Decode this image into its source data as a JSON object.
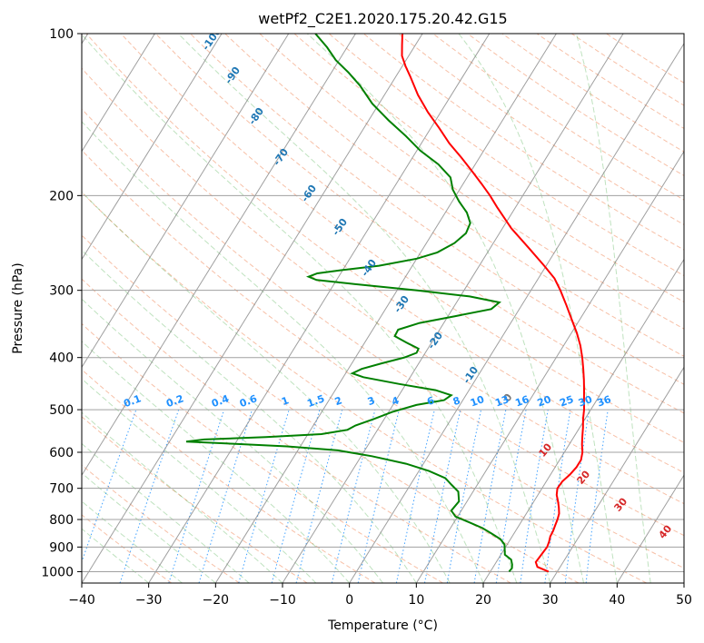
{
  "chart_data": {
    "type": "line",
    "title": "wetPf2_C2E1.2020.175.20.42.G15",
    "xlabel": "Temperature (°C)",
    "ylabel": "Pressure (hPa)",
    "xlim": [
      -40,
      50
    ],
    "ylim": [
      1050,
      100
    ],
    "y_scale": "log",
    "grid": true,
    "x_ticks": [
      -40,
      -30,
      -20,
      -10,
      0,
      10,
      20,
      30,
      40,
      50
    ],
    "y_ticks": [
      100,
      200,
      300,
      400,
      500,
      600,
      700,
      800,
      900,
      1000
    ],
    "series": [
      {
        "key": "temperature",
        "color": "#ff0000",
        "points": [
          [
            1000,
            28.7
          ],
          [
            980,
            26.6
          ],
          [
            960,
            25.9
          ],
          [
            940,
            26.0
          ],
          [
            920,
            26.1
          ],
          [
            900,
            26.2
          ],
          [
            880,
            26.0
          ],
          [
            860,
            25.7
          ],
          [
            840,
            25.6
          ],
          [
            820,
            25.4
          ],
          [
            800,
            25.2
          ],
          [
            780,
            24.9
          ],
          [
            760,
            24.3
          ],
          [
            740,
            23.6
          ],
          [
            720,
            22.8
          ],
          [
            700,
            22.3
          ],
          [
            680,
            22.4
          ],
          [
            660,
            22.9
          ],
          [
            640,
            23.2
          ],
          [
            620,
            23.2
          ],
          [
            600,
            22.7
          ],
          [
            580,
            21.9
          ],
          [
            560,
            21.2
          ],
          [
            540,
            20.5
          ],
          [
            520,
            19.7
          ],
          [
            500,
            19.0
          ],
          [
            480,
            18.1
          ],
          [
            460,
            17.2
          ],
          [
            440,
            16.2
          ],
          [
            420,
            15.1
          ],
          [
            400,
            13.9
          ],
          [
            380,
            12.5
          ],
          [
            360,
            10.8
          ],
          [
            340,
            8.8
          ],
          [
            320,
            6.7
          ],
          [
            300,
            4.4
          ],
          [
            285,
            2.4
          ],
          [
            270,
            -0.3
          ],
          [
            250,
            -4.3
          ],
          [
            230,
            -8.7
          ],
          [
            210,
            -12.8
          ],
          [
            200,
            -14.9
          ],
          [
            190,
            -17.3
          ],
          [
            180,
            -19.9
          ],
          [
            170,
            -22.7
          ],
          [
            160,
            -25.8
          ],
          [
            150,
            -28.7
          ],
          [
            140,
            -31.9
          ],
          [
            130,
            -35.0
          ],
          [
            120,
            -37.9
          ],
          [
            115,
            -39.5
          ],
          [
            110,
            -41.0
          ],
          [
            105,
            -42.0
          ],
          [
            100,
            -43.0
          ]
        ]
      },
      {
        "key": "dewpoint",
        "color": "#008000",
        "points": [
          [
            1000,
            22.8
          ],
          [
            985,
            22.9
          ],
          [
            970,
            22.6
          ],
          [
            950,
            22.0
          ],
          [
            930,
            20.6
          ],
          [
            910,
            20.1
          ],
          [
            890,
            19.6
          ],
          [
            870,
            18.5
          ],
          [
            850,
            16.7
          ],
          [
            830,
            14.8
          ],
          [
            810,
            12.3
          ],
          [
            790,
            9.7
          ],
          [
            770,
            8.5
          ],
          [
            740,
            8.8
          ],
          [
            710,
            7.8
          ],
          [
            690,
            6.2
          ],
          [
            670,
            4.6
          ],
          [
            650,
            1.5
          ],
          [
            630,
            -2.6
          ],
          [
            610,
            -8.4
          ],
          [
            595,
            -14.0
          ],
          [
            585,
            -22.0
          ],
          [
            578,
            -31.0
          ],
          [
            573,
            -37.5
          ],
          [
            568,
            -35.0
          ],
          [
            562,
            -26.0
          ],
          [
            555,
            -18.0
          ],
          [
            545,
            -14.5
          ],
          [
            535,
            -13.7
          ],
          [
            520,
            -11.5
          ],
          [
            505,
            -9.5
          ],
          [
            490,
            -6.5
          ],
          [
            480,
            -2.8
          ],
          [
            470,
            -2.2
          ],
          [
            460,
            -5.0
          ],
          [
            448,
            -11.0
          ],
          [
            435,
            -17.0
          ],
          [
            428,
            -19.0
          ],
          [
            420,
            -18.0
          ],
          [
            410,
            -15.5
          ],
          [
            400,
            -12.7
          ],
          [
            392,
            -11.3
          ],
          [
            385,
            -11.4
          ],
          [
            375,
            -13.8
          ],
          [
            365,
            -16.1
          ],
          [
            355,
            -16.2
          ],
          [
            345,
            -13.6
          ],
          [
            335,
            -8.9
          ],
          [
            325,
            -4.2
          ],
          [
            316,
            -3.6
          ],
          [
            308,
            -8.6
          ],
          [
            300,
            -17.0
          ],
          [
            292,
            -27.0
          ],
          [
            287,
            -33.0
          ],
          [
            283,
            -34.5
          ],
          [
            279,
            -33.5
          ],
          [
            275,
            -30.0
          ],
          [
            270,
            -25.0
          ],
          [
            262,
            -20.0
          ],
          [
            255,
            -17.5
          ],
          [
            245,
            -15.8
          ],
          [
            235,
            -15.0
          ],
          [
            225,
            -15.3
          ],
          [
            215,
            -16.8
          ],
          [
            205,
            -19.0
          ],
          [
            195,
            -21.0
          ],
          [
            185,
            -22.5
          ],
          [
            175,
            -25.5
          ],
          [
            165,
            -29.5
          ],
          [
            155,
            -33.0
          ],
          [
            145,
            -37.0
          ],
          [
            135,
            -41.0
          ],
          [
            125,
            -44.5
          ],
          [
            118,
            -47.5
          ],
          [
            112,
            -50.5
          ],
          [
            106,
            -53.0
          ],
          [
            100,
            -56.0
          ]
        ]
      }
    ],
    "dry_adiabat_labels": [
      -100,
      -90,
      -80,
      -70,
      -60,
      -50,
      -40,
      -30,
      -20,
      -10,
      0
    ],
    "moist_adiabat_labels": [
      10,
      20,
      30,
      40
    ],
    "mixing_ratio_labels": [
      "0.1",
      "0.2",
      "0.4",
      "0.6",
      "1",
      "1.5",
      "2",
      "3",
      "4",
      "6",
      "8",
      "10",
      "13",
      "16",
      "20",
      "25",
      "30",
      "36"
    ]
  }
}
